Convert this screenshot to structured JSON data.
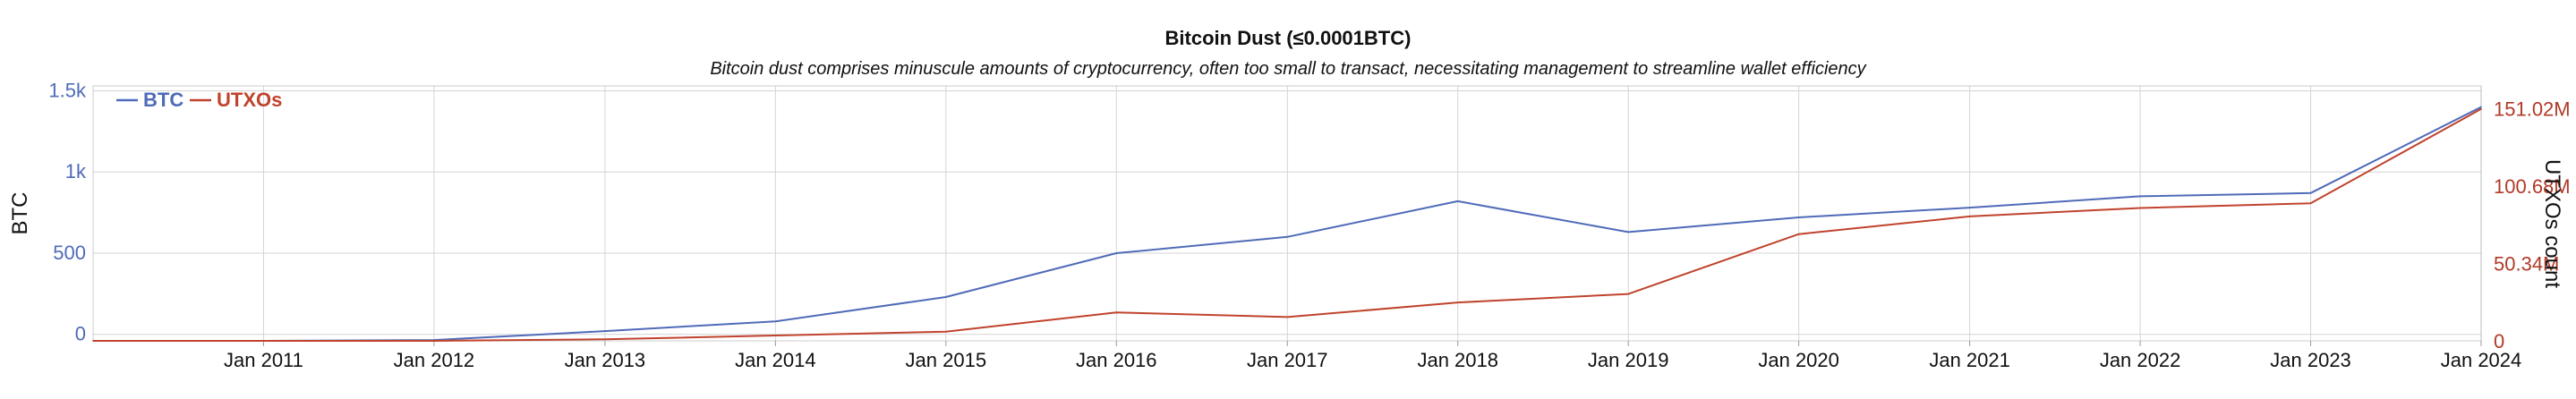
{
  "colors": {
    "btc": "#4f6bb8",
    "utxo": "#c0432d",
    "grid": "#d4d4d4",
    "axis_left": "#4f6bb8",
    "axis_right": "#b03a27",
    "text": "#111111"
  },
  "chart_data": {
    "type": "line",
    "title": "Bitcoin Dust (≤0.0001BTC)",
    "subtitle": "Bitcoin dust comprises minuscule amounts of cryptocurrency, often too small to transact, necessitating management to streamline wallet efficiency",
    "ylabel_left": "BTC",
    "ylabel_right": "UTXOs count",
    "x_tick_labels": [
      "Jan 2011",
      "Jan 2012",
      "Jan 2013",
      "Jan 2014",
      "Jan 2015",
      "Jan 2016",
      "Jan 2017",
      "Jan 2018",
      "Jan 2019",
      "Jan 2020",
      "Jan 2021",
      "Jan 2022",
      "Jan 2023",
      "Jan 2024"
    ],
    "xlim": [
      "2010-01-01",
      "2024-01-01"
    ],
    "y_left_ticks": [
      {
        "value": 0,
        "label": "0"
      },
      {
        "value": 500,
        "label": "500"
      },
      {
        "value": 1000,
        "label": "1k"
      },
      {
        "value": 1500,
        "label": "1.5k"
      }
    ],
    "y_left_lim": [
      -40,
      1530
    ],
    "y_right_ticks": [
      {
        "value": 0,
        "label": "0"
      },
      {
        "value": 50340000,
        "label": "50.34M"
      },
      {
        "value": 100680000,
        "label": "100.68M"
      },
      {
        "value": 151020000,
        "label": "151.02M"
      }
    ],
    "y_right_lim": [
      0,
      166000000
    ],
    "grid": true,
    "legend": "top-left",
    "series": [
      {
        "name": "BTC",
        "axis": "left",
        "x": [
          "2010-01-01",
          "2011-01-01",
          "2012-01-01",
          "2013-01-01",
          "2014-01-01",
          "2015-01-01",
          "2016-01-01",
          "2017-01-01",
          "2018-01-01",
          "2019-01-01",
          "2020-01-01",
          "2021-01-01",
          "2022-01-01",
          "2023-01-01",
          "2024-01-01"
        ],
        "values": [
          -40,
          -40,
          -35,
          20,
          80,
          230,
          500,
          600,
          820,
          630,
          720,
          780,
          850,
          870,
          1400
        ]
      },
      {
        "name": "UTXOs",
        "axis": "right",
        "x": [
          "2010-01-01",
          "2011-01-01",
          "2012-01-01",
          "2013-01-01",
          "2014-01-01",
          "2015-01-01",
          "2016-01-01",
          "2017-01-01",
          "2018-01-01",
          "2019-01-01",
          "2020-01-01",
          "2021-01-01",
          "2022-01-01",
          "2023-01-01",
          "2024-01-01"
        ],
        "values": [
          0,
          0,
          0,
          1000000,
          3500000,
          6000000,
          18500000,
          15500000,
          25000000,
          30500000,
          69500000,
          81000000,
          86500000,
          89500000,
          151000000
        ]
      }
    ]
  }
}
